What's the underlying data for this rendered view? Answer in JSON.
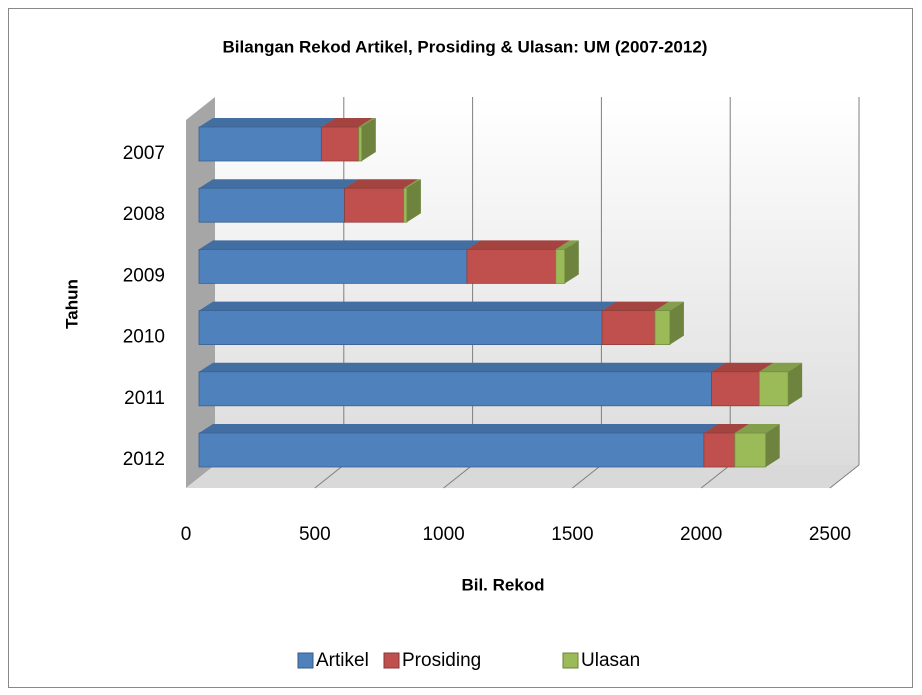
{
  "chart_data": {
    "type": "bar3d_stacked_horizontal",
    "title": "Bilangan Rekod Artikel, Prosiding & Ulasan: UM (2007-2012)",
    "x_label": "Bil. Rekod",
    "y_label": "Tahun",
    "categories": [
      "2007",
      "2008",
      "2009",
      "2010",
      "2011",
      "2012"
    ],
    "series": [
      {
        "name": "Artikel",
        "color": "#4f81bd",
        "values": [
          475,
          565,
          1040,
          1565,
          1990,
          1960
        ]
      },
      {
        "name": "Prosiding",
        "color": "#c0504d",
        "values": [
          145,
          230,
          345,
          205,
          185,
          120
        ]
      },
      {
        "name": "Ulasan",
        "color": "#9bbb59",
        "values": [
          12,
          12,
          35,
          58,
          112,
          120
        ]
      }
    ],
    "xlim": [
      0,
      2500
    ],
    "xticks": [
      0,
      500,
      1000,
      1500,
      2000,
      2500
    ],
    "grid": true,
    "legend": "bottom"
  }
}
